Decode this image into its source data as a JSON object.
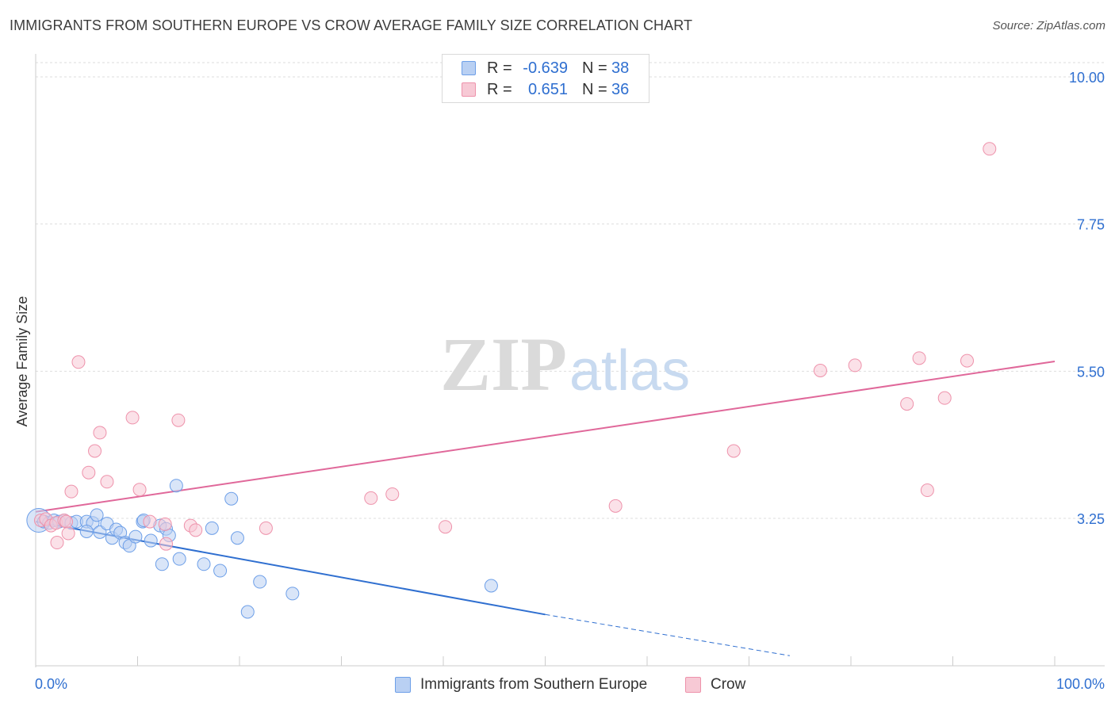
{
  "chart_data": {
    "type": "scatter",
    "title": "IMMIGRANTS FROM SOUTHERN EUROPE VS CROW AVERAGE FAMILY SIZE CORRELATION CHART",
    "source": "Source: ZipAtlas.com",
    "xlabel": "",
    "ylabel": "Average Family Size",
    "x_tick_labels": {
      "left": "0.0%",
      "right": "100.0%"
    },
    "xlim": [
      0,
      100
    ],
    "ylim": [
      1.15,
      10.3
    ],
    "y_ticks": [
      3.25,
      5.5,
      7.75,
      10.0
    ],
    "y_tick_labels": [
      "3.25",
      "5.50",
      "7.75",
      "10.00"
    ],
    "grid": true,
    "watermark": {
      "part1": "ZIP",
      "part2": "atlas"
    },
    "legend": {
      "placement": "top-center",
      "rows": [
        {
          "r_label": "R =",
          "r_value": "-0.639",
          "n_label": "N =",
          "n_value": "38"
        },
        {
          "r_label": "R =",
          "r_value": "0.651",
          "n_label": "N =",
          "n_value": "36"
        }
      ]
    },
    "series": [
      {
        "name": "Immigrants from Southern Europe",
        "color": "#6d9fe8",
        "fill": "#b9d0f3",
        "line_color": "#2f6fd0",
        "trend": {
          "x0": 0,
          "y0": 3.2,
          "x1": 50,
          "y1": 1.78,
          "dashed_to_x": 74,
          "dashed_to_y": 1.15
        },
        "points": [
          [
            0.3,
            3.22
          ],
          [
            0.8,
            3.2
          ],
          [
            1.3,
            3.18
          ],
          [
            1.8,
            3.22
          ],
          [
            2.3,
            3.2
          ],
          [
            2.8,
            3.22
          ],
          [
            3.5,
            3.18
          ],
          [
            4,
            3.2
          ],
          [
            5,
            3.2
          ],
          [
            5.6,
            3.18
          ],
          [
            5,
            3.05
          ],
          [
            6,
            3.3
          ],
          [
            6.3,
            3.04
          ],
          [
            7,
            3.17
          ],
          [
            7.5,
            2.95
          ],
          [
            7.9,
            3.08
          ],
          [
            8.3,
            3.03
          ],
          [
            8.8,
            2.88
          ],
          [
            9.2,
            2.83
          ],
          [
            9.8,
            2.97
          ],
          [
            10.5,
            3.2
          ],
          [
            10.6,
            3.22
          ],
          [
            11.3,
            2.91
          ],
          [
            12.2,
            3.14
          ],
          [
            12.8,
            3.09
          ],
          [
            13.1,
            2.99
          ],
          [
            12.4,
            2.55
          ],
          [
            14.1,
            2.63
          ],
          [
            16.5,
            2.55
          ],
          [
            13.8,
            3.75
          ],
          [
            17.3,
            3.1
          ],
          [
            19.2,
            3.55
          ],
          [
            19.8,
            2.95
          ],
          [
            18.1,
            2.45
          ],
          [
            22,
            2.28
          ],
          [
            25.2,
            2.1
          ],
          [
            20.8,
            1.82
          ],
          [
            44.7,
            2.22
          ]
        ]
      },
      {
        "name": "Crow",
        "color": "#ee92ab",
        "fill": "#f7c9d5",
        "line_color": "#e0689a",
        "trend": {
          "x0": 0,
          "y0": 3.35,
          "x1": 100,
          "y1": 5.65
        },
        "points": [
          [
            0.5,
            3.22
          ],
          [
            1,
            3.24
          ],
          [
            1.5,
            3.14
          ],
          [
            2,
            3.18
          ],
          [
            2.1,
            2.88
          ],
          [
            2.8,
            3.22
          ],
          [
            3,
            3.2
          ],
          [
            3.2,
            3.02
          ],
          [
            3.5,
            3.66
          ],
          [
            4.2,
            5.64
          ],
          [
            5.2,
            3.95
          ],
          [
            5.8,
            4.28
          ],
          [
            6.3,
            4.56
          ],
          [
            7,
            3.81
          ],
          [
            9.5,
            4.79
          ],
          [
            10.2,
            3.69
          ],
          [
            11.2,
            3.2
          ],
          [
            12.7,
            3.16
          ],
          [
            12.8,
            2.86
          ],
          [
            14,
            4.75
          ],
          [
            15.2,
            3.14
          ],
          [
            15.7,
            3.07
          ],
          [
            22.6,
            3.1
          ],
          [
            32.9,
            3.56
          ],
          [
            35,
            3.62
          ],
          [
            40.2,
            3.12
          ],
          [
            56.9,
            3.44
          ],
          [
            68.5,
            4.28
          ],
          [
            77,
            5.51
          ],
          [
            80.4,
            5.59
          ],
          [
            85.5,
            5.0
          ],
          [
            86.7,
            5.7
          ],
          [
            87.5,
            3.68
          ],
          [
            89.2,
            5.09
          ],
          [
            91.4,
            5.66
          ],
          [
            93.6,
            8.9
          ]
        ]
      }
    ]
  }
}
